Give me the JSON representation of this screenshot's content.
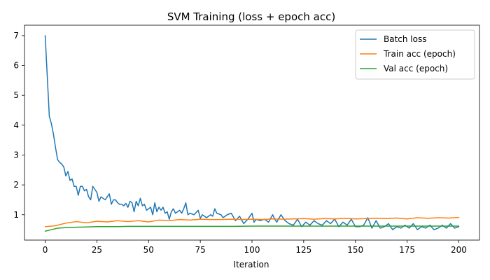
{
  "chart_data": {
    "type": "line",
    "title": "SVM Training (loss + epoch acc)",
    "xlabel": "Iteration",
    "ylabel": "",
    "xlim": [
      -10,
      210
    ],
    "ylim": [
      0.15,
      7.35
    ],
    "xticks": [
      0,
      25,
      50,
      75,
      100,
      125,
      150,
      175,
      200
    ],
    "yticks": [
      1,
      2,
      3,
      4,
      5,
      6,
      7
    ],
    "grid": false,
    "legend_position": "top-right",
    "series": [
      {
        "name": "Batch loss",
        "color": "#1f77b4",
        "x": [
          0,
          2,
          3,
          4,
          5,
          6,
          7,
          8,
          9,
          10,
          11,
          12,
          13,
          14,
          15,
          16,
          17,
          18,
          19,
          20,
          21,
          22,
          23,
          24,
          25,
          26,
          27,
          28,
          29,
          30,
          31,
          32,
          33,
          34,
          35,
          36,
          37,
          38,
          39,
          40,
          41,
          42,
          43,
          44,
          45,
          46,
          47,
          48,
          49,
          50,
          51,
          52,
          53,
          54,
          55,
          56,
          57,
          58,
          59,
          60,
          61,
          62,
          63,
          64,
          65,
          66,
          67,
          68,
          69,
          70,
          72,
          74,
          75,
          76,
          78,
          80,
          81,
          82,
          83,
          85,
          86,
          88,
          90,
          92,
          94,
          96,
          98,
          100,
          101,
          102,
          104,
          106,
          108,
          110,
          111,
          112,
          114,
          116,
          118,
          120,
          122,
          124,
          126,
          128,
          130,
          132,
          134,
          136,
          138,
          140,
          142,
          144,
          146,
          148,
          150,
          152,
          154,
          156,
          158,
          160,
          162,
          164,
          166,
          168,
          170,
          172,
          174,
          176,
          178,
          180,
          182,
          184,
          186,
          188,
          190,
          192,
          194,
          196,
          198,
          200
        ],
        "y": [
          7.0,
          4.3,
          4.05,
          3.7,
          3.25,
          2.85,
          2.75,
          2.7,
          2.6,
          2.3,
          2.45,
          2.15,
          2.2,
          1.95,
          1.95,
          1.65,
          1.95,
          1.95,
          1.8,
          1.85,
          1.6,
          1.5,
          1.95,
          1.85,
          1.75,
          1.45,
          1.6,
          1.55,
          1.5,
          1.6,
          1.7,
          1.35,
          1.5,
          1.5,
          1.4,
          1.35,
          1.35,
          1.3,
          1.38,
          1.25,
          1.45,
          1.4,
          1.1,
          1.45,
          1.3,
          1.55,
          1.3,
          1.35,
          1.15,
          1.2,
          1.25,
          1.0,
          1.4,
          1.1,
          1.25,
          1.15,
          1.25,
          1.05,
          1.1,
          0.85,
          1.1,
          1.2,
          1.05,
          1.1,
          1.15,
          1.05,
          1.2,
          1.4,
          1.0,
          1.05,
          1.0,
          1.15,
          0.88,
          1.0,
          0.9,
          1.0,
          0.95,
          1.2,
          1.05,
          1.0,
          0.9,
          1.0,
          1.05,
          0.8,
          0.95,
          0.7,
          0.85,
          1.05,
          0.75,
          0.85,
          0.8,
          0.85,
          0.75,
          1.0,
          0.85,
          0.75,
          1.0,
          0.8,
          0.7,
          0.65,
          0.85,
          0.6,
          0.75,
          0.65,
          0.8,
          0.7,
          0.65,
          0.8,
          0.7,
          0.85,
          0.6,
          0.75,
          0.65,
          0.85,
          0.6,
          0.6,
          0.65,
          0.9,
          0.55,
          0.8,
          0.55,
          0.6,
          0.7,
          0.5,
          0.6,
          0.55,
          0.65,
          0.55,
          0.7,
          0.5,
          0.6,
          0.55,
          0.65,
          0.5,
          0.55,
          0.65,
          0.55,
          0.7,
          0.55,
          0.6
        ]
      },
      {
        "name": "Train acc (epoch)",
        "color": "#ff7f0e",
        "x": [
          0,
          5,
          10,
          15,
          20,
          25,
          30,
          35,
          40,
          45,
          50,
          55,
          60,
          65,
          70,
          75,
          80,
          85,
          90,
          95,
          100,
          105,
          110,
          115,
          120,
          125,
          130,
          135,
          140,
          145,
          150,
          155,
          160,
          165,
          170,
          175,
          180,
          185,
          190,
          195,
          200
        ],
        "y": [
          0.6,
          0.63,
          0.72,
          0.77,
          0.73,
          0.78,
          0.76,
          0.8,
          0.77,
          0.8,
          0.76,
          0.82,
          0.8,
          0.84,
          0.82,
          0.85,
          0.84,
          0.84,
          0.85,
          0.84,
          0.85,
          0.84,
          0.86,
          0.85,
          0.86,
          0.87,
          0.85,
          0.87,
          0.86,
          0.88,
          0.86,
          0.87,
          0.88,
          0.87,
          0.89,
          0.86,
          0.9,
          0.88,
          0.9,
          0.89,
          0.91
        ]
      },
      {
        "name": "Val acc (epoch)",
        "color": "#2ca02c",
        "x": [
          0,
          3,
          6,
          10,
          15,
          20,
          25,
          30,
          35,
          40,
          50,
          60,
          70,
          80,
          90,
          100,
          110,
          120,
          130,
          140,
          150,
          160,
          170,
          180,
          190,
          200
        ],
        "y": [
          0.45,
          0.5,
          0.55,
          0.57,
          0.58,
          0.59,
          0.6,
          0.6,
          0.6,
          0.61,
          0.61,
          0.61,
          0.61,
          0.61,
          0.61,
          0.62,
          0.62,
          0.62,
          0.62,
          0.62,
          0.62,
          0.62,
          0.62,
          0.62,
          0.62,
          0.62
        ]
      }
    ]
  }
}
